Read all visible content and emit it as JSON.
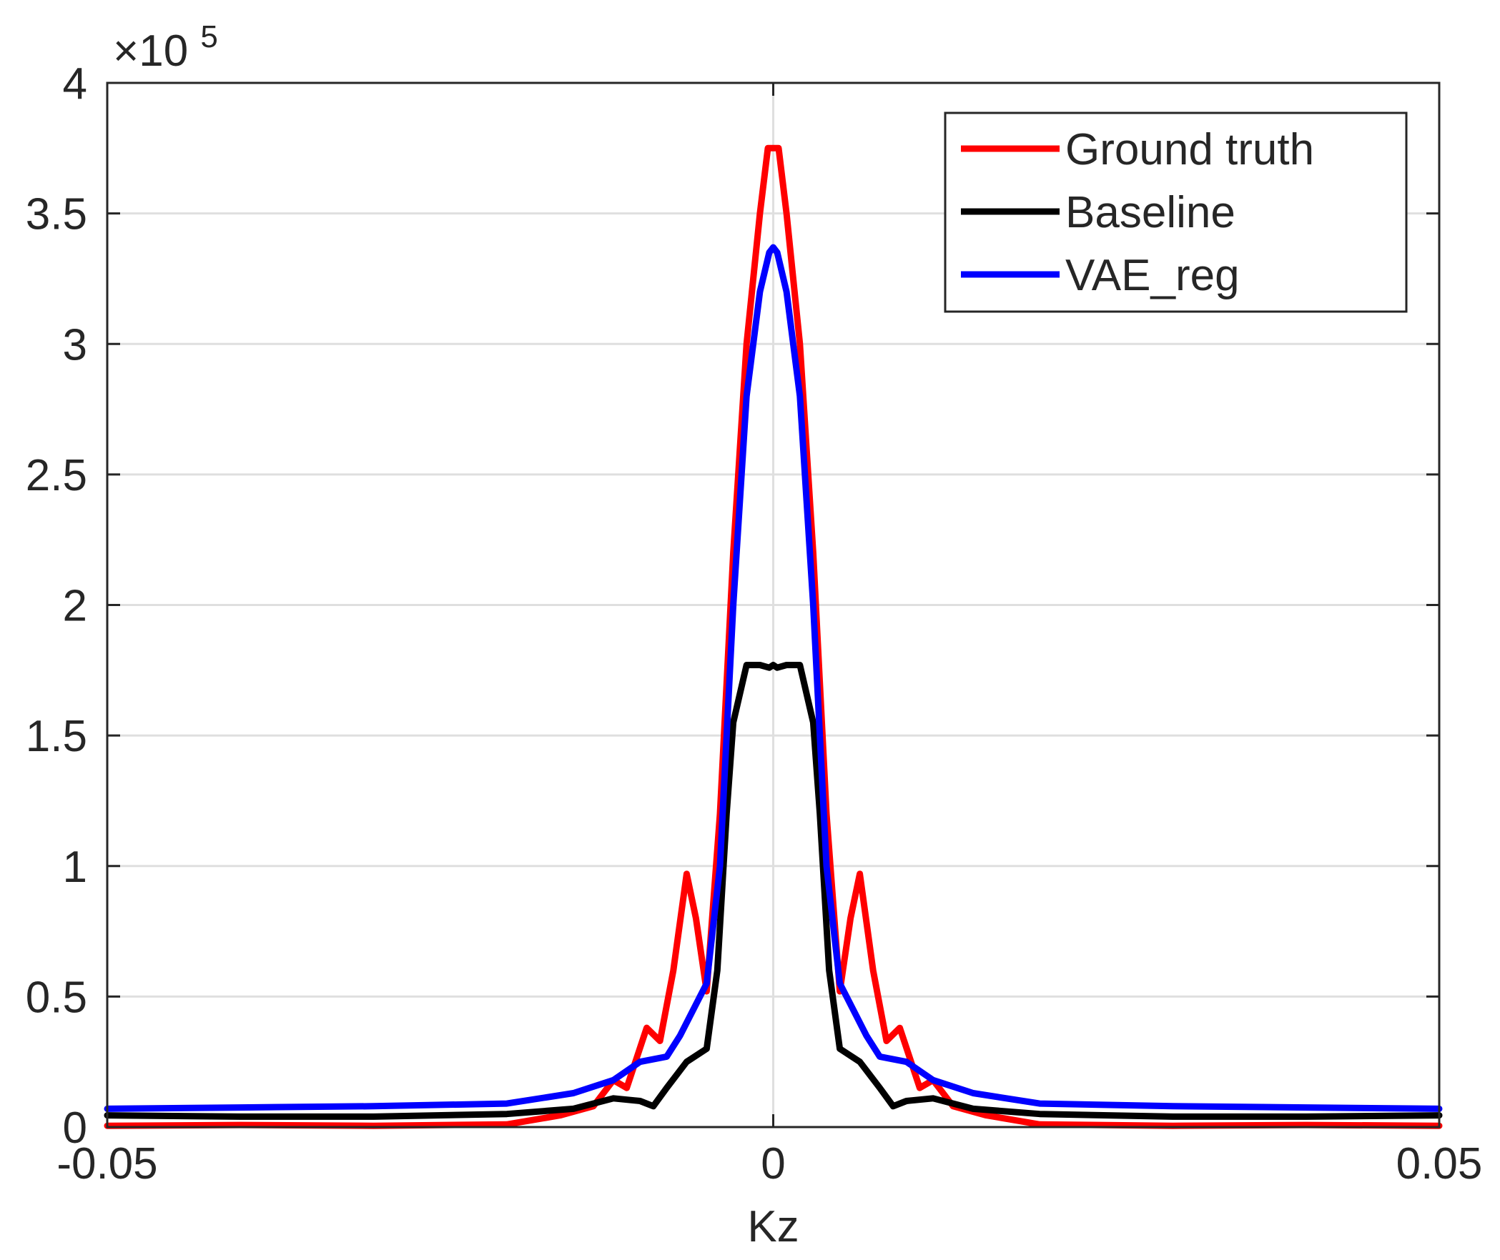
{
  "chart_data": {
    "type": "line",
    "title": "",
    "xlabel": "Kz",
    "ylabel": "",
    "xlim": [
      -0.05,
      0.05
    ],
    "ylim": [
      0,
      400000
    ],
    "y_exponent_label": "×10",
    "y_exponent_power": "5",
    "x_ticks": [
      -0.05,
      0,
      0.05
    ],
    "x_tick_labels": [
      "-0.05",
      "0",
      "0.05"
    ],
    "y_ticks": [
      0,
      50000,
      100000,
      150000,
      200000,
      250000,
      300000,
      350000,
      400000
    ],
    "y_tick_labels": [
      "0",
      "0.5",
      "1",
      "1.5",
      "2",
      "2.5",
      "3",
      "3.5",
      "4"
    ],
    "grid": true,
    "legend_position": "top-right",
    "series": [
      {
        "name": "Ground truth",
        "color": "#ff0000",
        "x": [
          -0.05,
          -0.04,
          -0.03,
          -0.02,
          -0.016,
          -0.0135,
          -0.012,
          -0.011,
          -0.0095,
          -0.0085,
          -0.0075,
          -0.0065,
          -0.0058,
          -0.005,
          -0.004,
          -0.003,
          -0.002,
          -0.001,
          -0.0004,
          0,
          0.0004,
          0.001,
          0.002,
          0.003,
          0.004,
          0.005,
          0.0058,
          0.0065,
          0.0075,
          0.0085,
          0.0095,
          0.011,
          0.012,
          0.0135,
          0.016,
          0.02,
          0.03,
          0.04,
          0.05
        ],
        "y": [
          500,
          800,
          500,
          1000,
          4500,
          8000,
          18000,
          15000,
          38000,
          33000,
          60000,
          97000,
          80000,
          52000,
          120000,
          220000,
          300000,
          350000,
          375000,
          375000,
          375000,
          350000,
          300000,
          220000,
          120000,
          52000,
          80000,
          97000,
          60000,
          33000,
          38000,
          15000,
          18000,
          8000,
          4500,
          1000,
          500,
          800,
          500
        ]
      },
      {
        "name": "Baseline",
        "color": "#000000",
        "x": [
          -0.05,
          -0.04,
          -0.03,
          -0.02,
          -0.015,
          -0.012,
          -0.01,
          -0.009,
          -0.008,
          -0.0065,
          -0.005,
          -0.0042,
          -0.0035,
          -0.003,
          -0.002,
          -0.001,
          -0.0003,
          0,
          0.0003,
          0.001,
          0.002,
          0.003,
          0.0035,
          0.0042,
          0.005,
          0.0065,
          0.008,
          0.009,
          0.01,
          0.012,
          0.015,
          0.02,
          0.03,
          0.04,
          0.05
        ],
        "y": [
          4500,
          4000,
          4000,
          5000,
          7000,
          11000,
          10000,
          8000,
          15000,
          25000,
          30000,
          60000,
          120000,
          155000,
          177000,
          177000,
          176000,
          177000,
          176000,
          177000,
          177000,
          155000,
          120000,
          60000,
          30000,
          25000,
          15000,
          8000,
          10000,
          11000,
          7000,
          5000,
          4000,
          4000,
          4500
        ]
      },
      {
        "name": "VAE_reg",
        "color": "#0000ff",
        "x": [
          -0.05,
          -0.04,
          -0.03,
          -0.02,
          -0.015,
          -0.012,
          -0.01,
          -0.008,
          -0.007,
          -0.0055,
          -0.005,
          -0.004,
          -0.003,
          -0.002,
          -0.001,
          -0.0003,
          0,
          0.0003,
          0.001,
          0.002,
          0.003,
          0.004,
          0.005,
          0.0055,
          0.007,
          0.008,
          0.01,
          0.012,
          0.015,
          0.02,
          0.03,
          0.04,
          0.05
        ],
        "y": [
          7000,
          7500,
          8000,
          9000,
          13000,
          18000,
          25000,
          27000,
          35000,
          50000,
          55000,
          100000,
          200000,
          280000,
          320000,
          335000,
          337000,
          335000,
          320000,
          280000,
          200000,
          100000,
          55000,
          50000,
          35000,
          27000,
          25000,
          18000,
          13000,
          9000,
          8000,
          7500,
          7000
        ]
      }
    ]
  }
}
